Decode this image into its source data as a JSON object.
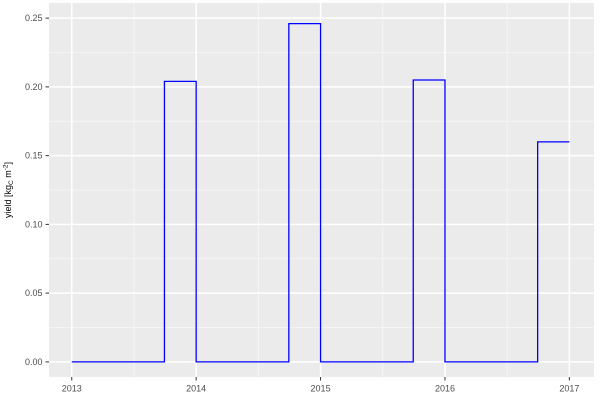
{
  "figure": {
    "background": "#FFFFFF",
    "panel_background": "#EBEBEB",
    "grid_major_color": "#FFFFFF",
    "grid_minor_color": "#FFFFFF",
    "tick_mark_color": "#333333",
    "tick_label_color": "#4D4D4D",
    "axis_title_color": "#000000"
  },
  "chart_data": {
    "type": "line",
    "subtype": "step",
    "title": "",
    "xlabel": "",
    "ylabel": "yield [kg_C m^-2]",
    "ylabel_parts": [
      {
        "t": "yield [kg",
        "style": "normal"
      },
      {
        "t": "C",
        "style": "sub"
      },
      {
        "t": " m",
        "style": "normal"
      },
      {
        "t": "-2",
        "style": "sup"
      },
      {
        "t": "]",
        "style": "normal"
      }
    ],
    "x_tick_labels": [
      "2013",
      "2014",
      "2015",
      "2016",
      "2017"
    ],
    "x_tick_values": [
      2013,
      2014,
      2015,
      2016,
      2017
    ],
    "y_tick_labels": [
      "0.00",
      "0.05",
      "0.10",
      "0.15",
      "0.20",
      "0.25"
    ],
    "y_tick_values": [
      0.0,
      0.05,
      0.1,
      0.15,
      0.2,
      0.25
    ],
    "xlim": [
      2012.817,
      2017.198
    ],
    "ylim": [
      -0.011,
      0.261
    ],
    "grid": "major+minor",
    "legend": "none",
    "series": [
      {
        "name": "yield",
        "color": "#0000FF",
        "line_width": 1.3,
        "points": [
          [
            2013.0,
            0.0
          ],
          [
            2013.745,
            0.0
          ],
          [
            2013.745,
            0.204
          ],
          [
            2014.0,
            0.204
          ],
          [
            2014.0,
            0.0
          ],
          [
            2014.745,
            0.0
          ],
          [
            2014.745,
            0.246
          ],
          [
            2015.0,
            0.246
          ],
          [
            2015.0,
            0.0
          ],
          [
            2015.745,
            0.0
          ],
          [
            2015.745,
            0.205
          ],
          [
            2016.0,
            0.205
          ],
          [
            2016.0,
            0.0
          ],
          [
            2016.745,
            0.0
          ],
          [
            2016.745,
            0.16
          ],
          [
            2017.0,
            0.16
          ]
        ]
      }
    ]
  }
}
